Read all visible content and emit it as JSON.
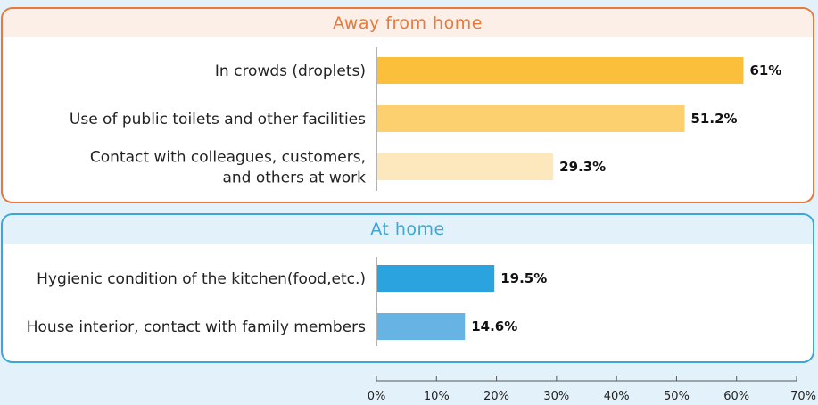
{
  "groups": {
    "away": "Away from home",
    "home": "At home"
  },
  "chart_data": {
    "type": "bar",
    "orientation": "horizontal",
    "categories": [
      [
        "In crowds (droplets)"
      ],
      [
        "Use of public toilets and other facilities"
      ],
      [
        "Contact with colleagues, customers,",
        "and others at work"
      ],
      [
        "Hygienic condition of the kitchen(food,etc.)"
      ],
      [
        "House interior, contact with family members"
      ]
    ],
    "values": [
      61,
      51.2,
      29.3,
      19.5,
      14.6
    ],
    "value_labels": [
      "61%",
      "51.2%",
      "29.3%",
      "19.5%",
      "14.6%"
    ],
    "group_of": [
      "away",
      "away",
      "away",
      "home",
      "home"
    ],
    "colors": [
      "#fbbf3b",
      "#fcd06e",
      "#fde8bd",
      "#2aa3df",
      "#66b3e4"
    ],
    "xlim": [
      0,
      70
    ],
    "xticks": [
      "0%",
      "10%",
      "20%",
      "30%",
      "40%",
      "50%",
      "60%",
      "70%"
    ],
    "grid": false
  }
}
